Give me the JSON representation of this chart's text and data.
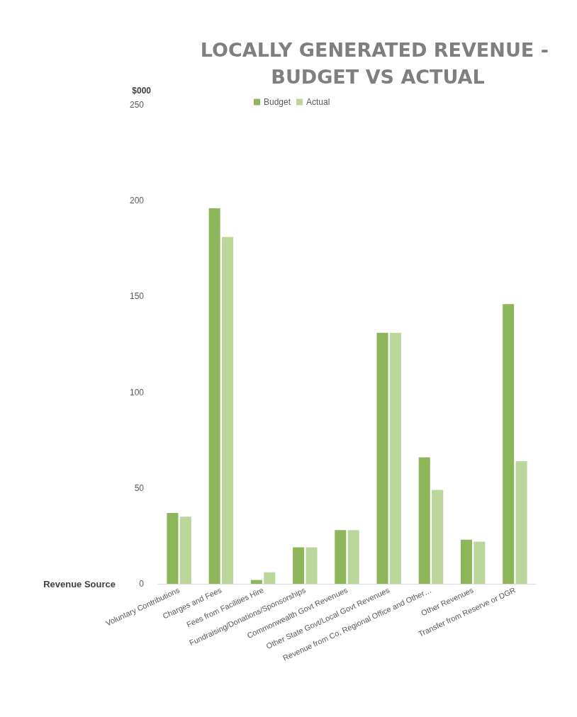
{
  "chart_data": {
    "type": "bar",
    "title": "LOCALLY GENERATED REVENUE - BUDGET VS ACTUAL",
    "ylabel": "$000",
    "xlabel": "Revenue Source",
    "categories": [
      "Voluntary Contributions",
      "Charges and Fees",
      "Fees from Facilities Hire",
      "Fundraising/Donations/Sponsorships",
      "Commonwealth Govt Revenues",
      "Other State Govt/Local Govt Revenues",
      "Revenue from Co, Regional Office and Other…",
      "Other Revenues",
      "Transfer from Reserve or DGR"
    ],
    "series": [
      {
        "name": "Budget",
        "color": "#8db55a",
        "values": [
          37,
          196,
          2,
          19,
          28,
          131,
          66,
          23,
          146
        ]
      },
      {
        "name": "Actual",
        "color": "#bad69b",
        "values": [
          35,
          181,
          6,
          19,
          28,
          131,
          49,
          22,
          64
        ]
      }
    ],
    "ylim": [
      0,
      250
    ],
    "yticks": [
      0,
      50,
      100,
      150,
      200,
      250
    ],
    "grid": false,
    "legend": "top"
  }
}
